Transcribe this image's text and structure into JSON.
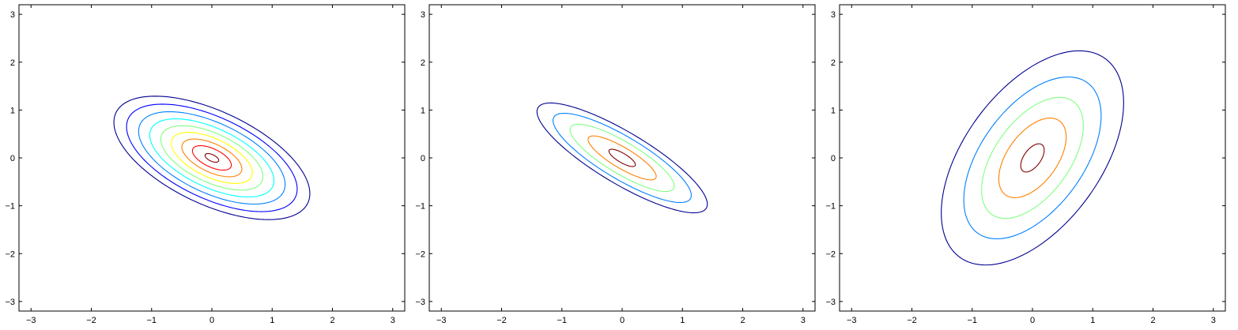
{
  "chart_data": [
    {
      "type": "contour",
      "xlim": [
        -3.2,
        3.2
      ],
      "ylim": [
        -3.2,
        3.2
      ],
      "xticks": [
        "−3",
        "−2",
        "−1",
        "0",
        "1",
        "2",
        "3"
      ],
      "yticks": [
        "3",
        "2",
        "1",
        "0",
        "−1",
        "−2",
        "−3"
      ],
      "xtick_values": [
        -3,
        -2,
        -1,
        0,
        1,
        2,
        3
      ],
      "ytick_values": [
        3,
        2,
        1,
        0,
        -1,
        -2,
        -3
      ],
      "grid": false,
      "center": [
        0,
        0
      ],
      "contours": [
        {
          "semi_major": 1.86,
          "semi_minor": 0.92,
          "angle_deg": -34,
          "color": "#00008f"
        },
        {
          "semi_major": 1.62,
          "semi_minor": 0.8,
          "angle_deg": -34,
          "color": "#0000ff"
        },
        {
          "semi_major": 1.39,
          "semi_minor": 0.69,
          "angle_deg": -34,
          "color": "#0080ff"
        },
        {
          "semi_major": 1.18,
          "semi_minor": 0.58,
          "angle_deg": -34,
          "color": "#00ffff"
        },
        {
          "semi_major": 0.97,
          "semi_minor": 0.48,
          "angle_deg": -34,
          "color": "#80ff80"
        },
        {
          "semi_major": 0.77,
          "semi_minor": 0.38,
          "angle_deg": -34,
          "color": "#ffff00"
        },
        {
          "semi_major": 0.57,
          "semi_minor": 0.28,
          "angle_deg": -34,
          "color": "#ff8000"
        },
        {
          "semi_major": 0.37,
          "semi_minor": 0.18,
          "angle_deg": -34,
          "color": "#ff0000"
        },
        {
          "semi_major": 0.13,
          "semi_minor": 0.065,
          "angle_deg": -34,
          "color": "#800000"
        }
      ]
    },
    {
      "type": "contour",
      "xlim": [
        -3.2,
        3.2
      ],
      "ylim": [
        -3.2,
        3.2
      ],
      "xticks": [
        "−3",
        "−2",
        "−1",
        "0",
        "1",
        "2",
        "3"
      ],
      "yticks": [
        "3",
        "2",
        "1",
        "0",
        "−1",
        "−2",
        "−3"
      ],
      "xtick_values": [
        -3,
        -2,
        -1,
        0,
        1,
        2,
        3
      ],
      "ytick_values": [
        3,
        2,
        1,
        0,
        -1,
        -2,
        -3
      ],
      "grid": false,
      "center": [
        0,
        0
      ],
      "contours": [
        {
          "semi_major": 1.75,
          "semi_minor": 0.5,
          "angle_deg": -38,
          "color": "#00008f"
        },
        {
          "semi_major": 1.42,
          "semi_minor": 0.41,
          "angle_deg": -38,
          "color": "#0080ff"
        },
        {
          "semi_major": 1.07,
          "semi_minor": 0.31,
          "angle_deg": -38,
          "color": "#80ff80"
        },
        {
          "semi_major": 0.7,
          "semi_minor": 0.2,
          "angle_deg": -38,
          "color": "#ff8000"
        },
        {
          "semi_major": 0.27,
          "semi_minor": 0.09,
          "angle_deg": -38,
          "color": "#800000"
        }
      ]
    },
    {
      "type": "contour",
      "xlim": [
        -3.2,
        3.2
      ],
      "ylim": [
        -3.2,
        3.2
      ],
      "xticks": [
        "−3",
        "−2",
        "−1",
        "0",
        "1",
        "2",
        "3"
      ],
      "yticks": [
        "3",
        "2",
        "1",
        "0",
        "−1",
        "−2",
        "−3"
      ],
      "xtick_values": [
        -3,
        -2,
        -1,
        0,
        1,
        2,
        3
      ],
      "ytick_values": [
        3,
        2,
        1,
        0,
        -1,
        -2,
        -3
      ],
      "grid": false,
      "center": [
        0,
        0
      ],
      "contours": [
        {
          "semi_major": 2.42,
          "semi_minor": 1.2,
          "angle_deg": 64,
          "color": "#00008f"
        },
        {
          "semi_major": 1.83,
          "semi_minor": 0.9,
          "angle_deg": 64,
          "color": "#0080ff"
        },
        {
          "semi_major": 1.37,
          "semi_minor": 0.66,
          "angle_deg": 64,
          "color": "#80ff80"
        },
        {
          "semi_major": 0.9,
          "semi_minor": 0.44,
          "angle_deg": 64,
          "color": "#ff8000"
        },
        {
          "semi_major": 0.32,
          "semi_minor": 0.15,
          "angle_deg": 64,
          "color": "#800000"
        }
      ]
    }
  ]
}
